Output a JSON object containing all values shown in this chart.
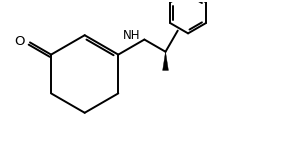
{
  "bg_color": "#ffffff",
  "line_color": "#000000",
  "line_width": 1.4,
  "font_size": 8.5,
  "fig_width": 2.9,
  "fig_height": 1.48,
  "dpi": 100,
  "xlim": [
    0,
    10
  ],
  "ylim": [
    0,
    5
  ]
}
